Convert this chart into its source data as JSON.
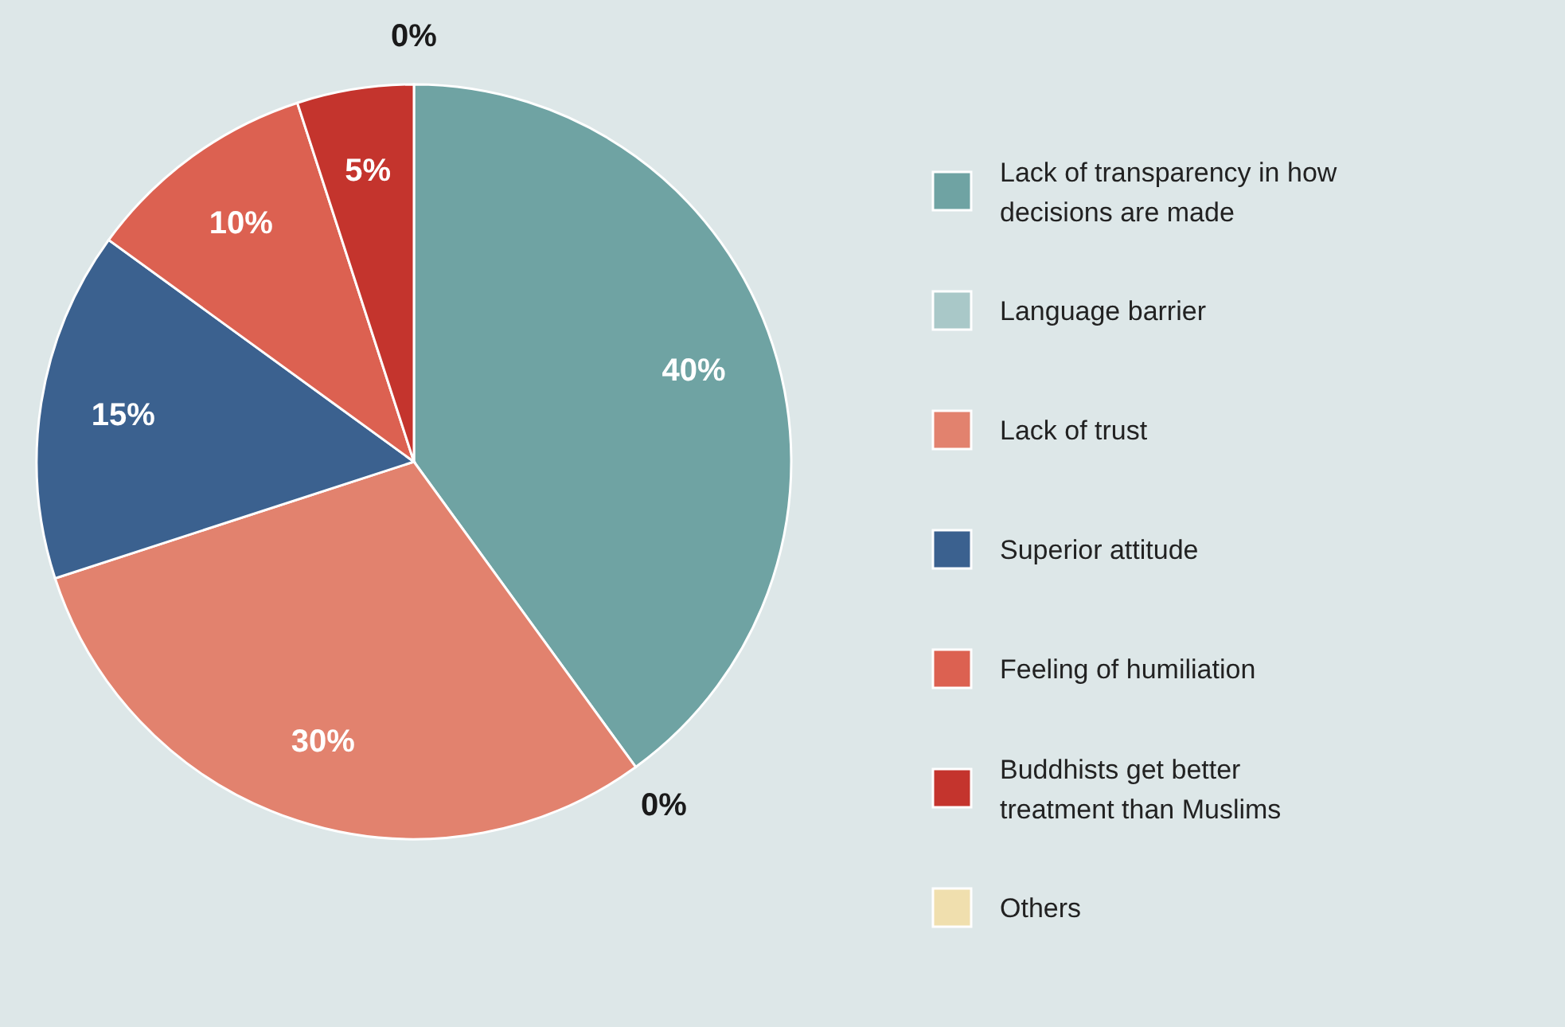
{
  "chart_data": {
    "type": "pie",
    "categories": [
      "Lack of transparency in how decisions are made",
      "Language barrier",
      "Lack of trust",
      "Superior attitude",
      "Feeling of humiliation",
      "Buddhists get better treatment than Muslims",
      "Others"
    ],
    "values": [
      40,
      0,
      30,
      15,
      10,
      5,
      0
    ],
    "value_labels": [
      "40%",
      "0%",
      "30%",
      "15%",
      "10%",
      "5%",
      "0%"
    ],
    "colors": [
      "#6fa3a3",
      "#a9c8c8",
      "#e2826e",
      "#3b618f",
      "#dc6151",
      "#c4342d",
      "#f0dfae"
    ],
    "legend": "right"
  }
}
